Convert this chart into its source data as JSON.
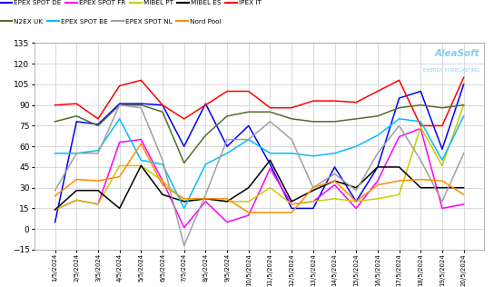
{
  "series": {
    "EPEX SPOT DE": {
      "color": "#0000FF",
      "values": [
        5,
        78,
        76,
        91,
        91,
        90,
        60,
        91,
        60,
        75,
        47,
        15,
        15,
        45,
        20,
        45,
        95,
        100,
        58,
        105
      ]
    },
    "EPEX SPOT FR": {
      "color": "#FF00FF",
      "values": [
        14,
        21,
        18,
        63,
        65,
        35,
        1,
        20,
        5,
        10,
        44,
        18,
        20,
        32,
        15,
        35,
        67,
        73,
        15,
        18
      ]
    },
    "MIBEL PT": {
      "color": "#CCCC00",
      "values": [
        14,
        21,
        18,
        46,
        46,
        35,
        20,
        22,
        20,
        20,
        30,
        18,
        20,
        22,
        20,
        22,
        25,
        74,
        46,
        90
      ]
    },
    "MIBEL ES": {
      "color": "#000000",
      "values": [
        14,
        28,
        28,
        15,
        46,
        25,
        20,
        22,
        20,
        30,
        50,
        20,
        28,
        35,
        30,
        45,
        45,
        30,
        30,
        30
      ]
    },
    "IPEX IT": {
      "color": "#FF0000",
      "values": [
        90,
        91,
        80,
        104,
        108,
        90,
        80,
        90,
        100,
        100,
        88,
        88,
        93,
        93,
        92,
        100,
        108,
        75,
        75,
        110
      ]
    },
    "N2EX UK": {
      "color": "#556B2F",
      "values": [
        78,
        82,
        75,
        90,
        90,
        85,
        48,
        68,
        82,
        85,
        85,
        80,
        78,
        78,
        80,
        82,
        88,
        90,
        88,
        90
      ]
    },
    "EPEX SPOT BE": {
      "color": "#00BFFF",
      "values": [
        55,
        55,
        57,
        80,
        50,
        47,
        15,
        47,
        55,
        65,
        55,
        55,
        53,
        55,
        60,
        68,
        80,
        78,
        50,
        82
      ]
    },
    "EPEX SPOT NL": {
      "color": "#A0A0A0",
      "values": [
        28,
        55,
        55,
        90,
        88,
        50,
        -12,
        25,
        65,
        65,
        78,
        65,
        30,
        40,
        28,
        55,
        75,
        50,
        20,
        55
      ]
    },
    "Nord Pool": {
      "color": "#FF8C00",
      "values": [
        24,
        36,
        35,
        38,
        62,
        32,
        22,
        22,
        22,
        12,
        12,
        12,
        30,
        35,
        20,
        32,
        35,
        36,
        35,
        25
      ]
    }
  },
  "x_labels": [
    "5/2024",
    "5/2024",
    "5/2024",
    "5/2024",
    "5/2024",
    "5/2024",
    "5/2024",
    "5/2024",
    "5/2024",
    "5/2024",
    "5/2024",
    "5/2024",
    "5/2024",
    "5/2024",
    "5/2024",
    "5/2024",
    "5/2024",
    "5/2024",
    "5/2024",
    "5/2024"
  ],
  "x_days": [
    1,
    2,
    3,
    4,
    5,
    6,
    7,
    8,
    9,
    10,
    11,
    12,
    13,
    14,
    15,
    16,
    17,
    18,
    19,
    20
  ],
  "ylim": [
    -15,
    135
  ],
  "yticks": [
    -15,
    0,
    15,
    30,
    45,
    60,
    75,
    90,
    105,
    120,
    135
  ],
  "background_color": "#FFFFFF",
  "grid_color": "#CCCCCC",
  "aleasoft_color": "#87CEEB",
  "aleasoft_sub_color": "#87CEEB"
}
